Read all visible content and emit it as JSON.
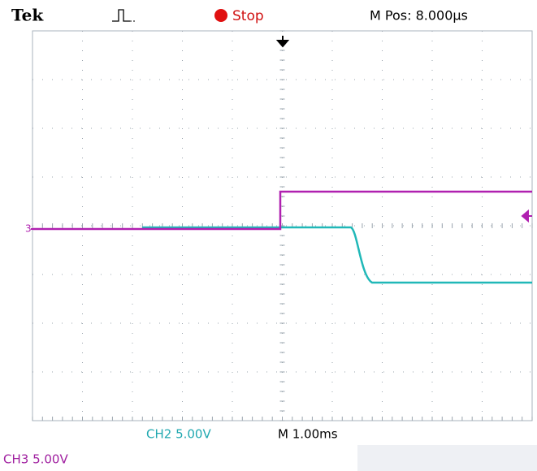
{
  "header": {
    "brand": "Tek",
    "status": "Stop",
    "position": "M Pos: 8.000µs"
  },
  "footer": {
    "ch2": "CH2  5.00V",
    "timebase": "M 1.00ms",
    "ch3": "CH3  5.00V"
  },
  "markers": {
    "channel": "3"
  }
}
